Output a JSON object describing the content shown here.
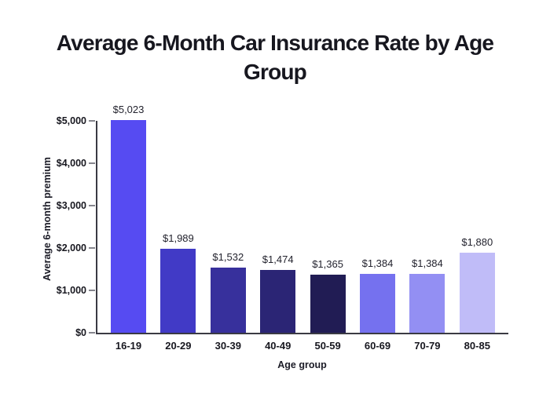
{
  "chart_data": {
    "type": "bar",
    "title": "Average 6-Month Car Insurance Rate by Age Group",
    "title_line1": "Average 6-Month Car Insurance Rate by Age",
    "title_line2": "Group",
    "xlabel": "Age group",
    "ylabel": "Average 6-month premium",
    "categories": [
      "16-19",
      "20-29",
      "30-39",
      "40-49",
      "50-59",
      "60-69",
      "70-79",
      "80-85"
    ],
    "values": [
      5023,
      1989,
      1532,
      1474,
      1365,
      1384,
      1384,
      1880
    ],
    "value_labels": [
      "$5,023",
      "$1,989",
      "$1,532",
      "$1,474",
      "$1,365",
      "$1,384",
      "$1,384",
      "$1,880"
    ],
    "bar_colors": [
      "#564bf2",
      "#413ac6",
      "#37309c",
      "#2b2575",
      "#211c54",
      "#7571ef",
      "#938ff3",
      "#c0bcf8"
    ],
    "ylim": [
      0,
      5000
    ],
    "yticks": [
      0,
      1000,
      2000,
      3000,
      4000,
      5000
    ],
    "ytick_labels": [
      "$0",
      "$1,000",
      "$2,000",
      "$3,000",
      "$4,000",
      "$5,000"
    ],
    "grid": false,
    "legend": "none",
    "colors": {
      "background": "#ffffff",
      "axis": "#3a3a43",
      "tick": "#85858d",
      "title_text": "#17171f",
      "label_text": "#1c1c27"
    }
  }
}
